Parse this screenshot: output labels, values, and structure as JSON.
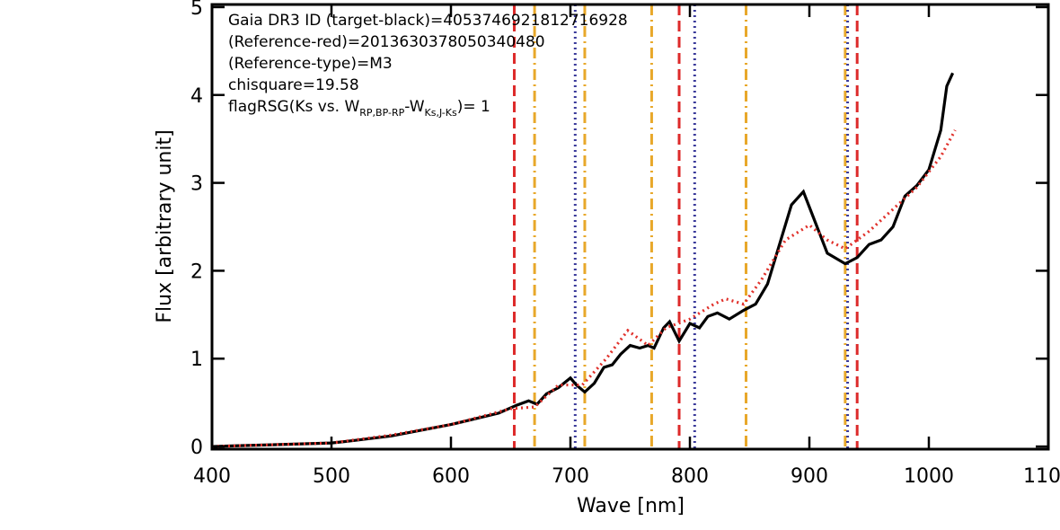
{
  "chart_data": {
    "type": "line",
    "x_label": "Wave [nm]",
    "y_label": "Flux [arbitrary unit]",
    "annotations": [
      "Gaia DR3 ID (target-black)=4053746921812716928",
      "(Reference-red)=2013630378050340480",
      "(Reference-type)=M3",
      "chisquare=19.58"
    ],
    "flag_label": [
      "flagRSG(Ks vs. W",
      "RP,BP-RP",
      "-W",
      "Ks,J-Ks",
      ")= 1"
    ],
    "xlim": [
      400,
      1100
    ],
    "ylim": [
      -0.03,
      5.03
    ],
    "xticks": [
      400,
      500,
      600,
      700,
      800,
      900,
      1000,
      1100
    ],
    "yticks": [
      0,
      1,
      2,
      3,
      4,
      5
    ],
    "series": [
      {
        "color": "#000000",
        "style": "solid",
        "x": [
          400,
          450,
          500,
          520,
          550,
          600,
          640,
          655,
          665,
          672,
          680,
          690,
          700,
          705,
          712,
          720,
          728,
          735,
          742,
          750,
          758,
          765,
          770,
          778,
          783,
          791,
          800,
          808,
          815,
          823,
          833,
          845,
          855,
          865,
          875,
          885,
          895,
          905,
          915,
          930,
          940,
          950,
          960,
          970,
          980,
          990,
          1000,
          1010,
          1015,
          1020
        ],
        "values": [
          0,
          0.02,
          0.04,
          0.07,
          0.12,
          0.25,
          0.38,
          0.47,
          0.52,
          0.48,
          0.6,
          0.67,
          0.78,
          0.7,
          0.62,
          0.72,
          0.9,
          0.93,
          1.05,
          1.15,
          1.12,
          1.15,
          1.12,
          1.35,
          1.42,
          1.2,
          1.4,
          1.35,
          1.48,
          1.52,
          1.45,
          1.55,
          1.62,
          1.85,
          2.3,
          2.75,
          2.9,
          2.55,
          2.2,
          2.08,
          2.15,
          2.3,
          2.35,
          2.5,
          2.85,
          2.97,
          3.15,
          3.6,
          4.1,
          4.25
        ]
      },
      {
        "color": "#e0302a",
        "style": "dotted",
        "x": [
          400,
          500,
          550,
          600,
          650,
          670,
          690,
          710,
          730,
          748,
          765,
          780,
          800,
          820,
          830,
          845,
          860,
          880,
          900,
          915,
          930,
          950,
          970,
          990,
          1010,
          1022
        ],
        "values": [
          0,
          0.04,
          0.13,
          0.25,
          0.43,
          0.45,
          0.7,
          0.7,
          1.0,
          1.32,
          1.15,
          1.35,
          1.45,
          1.62,
          1.68,
          1.62,
          1.9,
          2.35,
          2.52,
          2.35,
          2.25,
          2.45,
          2.7,
          2.95,
          3.3,
          3.6
        ]
      }
    ],
    "vlines": [
      {
        "color": "#dd2a2a",
        "style": "dashed",
        "x": [
          653,
          791,
          940
        ]
      },
      {
        "color": "#e8a82a",
        "style": "dashdot",
        "x": [
          670,
          712,
          768,
          847,
          930
        ]
      },
      {
        "color": "#3a3a9a",
        "style": "dotted",
        "x": [
          704,
          804,
          932
        ]
      }
    ]
  }
}
